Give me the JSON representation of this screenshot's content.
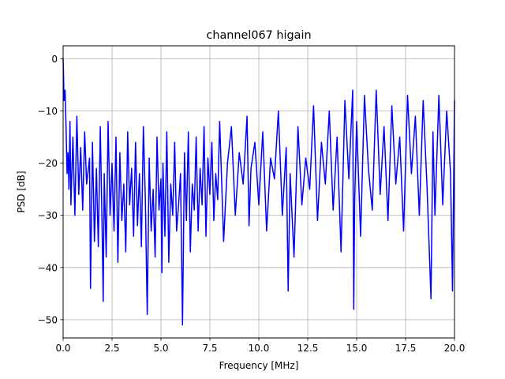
{
  "chart_data": {
    "type": "line",
    "title": "channel067 higain",
    "xlabel": "Frequency [MHz]",
    "ylabel": "PSD [dB]",
    "xlim": [
      0,
      20
    ],
    "ylim": [
      -53.5,
      2.5
    ],
    "xticks": [
      0,
      2.5,
      5,
      7.5,
      10,
      12.5,
      15,
      17.5,
      20
    ],
    "xtick_labels": [
      "0.0",
      "2.5",
      "5.0",
      "7.5",
      "10.0",
      "12.5",
      "15.0",
      "17.5",
      "20.0"
    ],
    "yticks": [
      0,
      -10,
      -20,
      -30,
      -40,
      -50
    ],
    "ytick_labels": [
      "0",
      "−10",
      "−20",
      "−30",
      "−40",
      "−50"
    ],
    "grid": true,
    "series": [
      {
        "color": "#0000ff",
        "x": [
          0.0,
          0.02,
          0.05,
          0.1,
          0.15,
          0.2,
          0.25,
          0.3,
          0.35,
          0.4,
          0.5,
          0.6,
          0.7,
          0.8,
          0.9,
          1.0,
          1.1,
          1.2,
          1.35,
          1.4,
          1.5,
          1.6,
          1.7,
          1.8,
          1.9,
          2.0,
          2.05,
          2.1,
          2.2,
          2.3,
          2.4,
          2.5,
          2.6,
          2.7,
          2.8,
          2.9,
          3.0,
          3.1,
          3.2,
          3.3,
          3.4,
          3.5,
          3.6,
          3.7,
          3.8,
          3.9,
          4.0,
          4.1,
          4.2,
          4.3,
          4.4,
          4.5,
          4.6,
          4.7,
          4.8,
          4.9,
          5.0,
          5.05,
          5.1,
          5.2,
          5.3,
          5.4,
          5.5,
          5.6,
          5.7,
          5.8,
          5.9,
          6.0,
          6.1,
          6.15,
          6.2,
          6.3,
          6.4,
          6.5,
          6.6,
          6.7,
          6.8,
          6.9,
          7.0,
          7.1,
          7.2,
          7.3,
          7.4,
          7.5,
          7.6,
          7.7,
          7.8,
          7.9,
          8.0,
          8.2,
          8.4,
          8.6,
          8.8,
          9.0,
          9.2,
          9.4,
          9.5,
          9.6,
          9.8,
          10.0,
          10.2,
          10.4,
          10.6,
          10.8,
          11.0,
          11.2,
          11.4,
          11.5,
          11.6,
          11.8,
          12.0,
          12.2,
          12.4,
          12.6,
          12.8,
          13.0,
          13.2,
          13.4,
          13.6,
          13.8,
          14.0,
          14.2,
          14.4,
          14.6,
          14.8,
          14.85,
          14.9,
          15.0,
          15.2,
          15.4,
          15.6,
          15.8,
          16.0,
          16.2,
          16.4,
          16.6,
          16.8,
          17.0,
          17.2,
          17.4,
          17.6,
          17.8,
          18.0,
          18.2,
          18.4,
          18.6,
          18.8,
          18.9,
          19.0,
          19.2,
          19.4,
          19.6,
          19.8,
          19.9,
          20.0
        ],
        "y": [
          0.0,
          -3,
          -8,
          -6,
          -13,
          -22,
          -18,
          -25,
          -12,
          -28,
          -15,
          -30,
          -11,
          -26,
          -17,
          -29,
          -14,
          -24,
          -19,
          -44,
          -16,
          -35,
          -21,
          -36,
          -13,
          -34,
          -46.5,
          -22,
          -38,
          -12,
          -30,
          -20,
          -33,
          -15,
          -39,
          -18,
          -31,
          -24,
          -37,
          -14,
          -28,
          -21,
          -34,
          -16,
          -32,
          -22,
          -36,
          -13,
          -27,
          -49,
          -19,
          -33,
          -25,
          -38,
          -15,
          -29,
          -23,
          -41,
          -20,
          -34,
          -14,
          -39,
          -24,
          -30,
          -16,
          -33,
          -28,
          -22,
          -51,
          -35,
          -18,
          -31,
          -14,
          -37,
          -24,
          -29,
          -15,
          -33,
          -21,
          -28,
          -13,
          -34,
          -19,
          -26,
          -16,
          -31,
          -22,
          -27,
          -12,
          -35,
          -20,
          -13,
          -30,
          -18,
          -24,
          -11,
          -32,
          -21,
          -16,
          -28,
          -14,
          -33,
          -19,
          -23,
          -10,
          -30,
          -17,
          -44.5,
          -22,
          -38,
          -13,
          -28,
          -19,
          -25,
          -9,
          -31,
          -16,
          -24,
          -10,
          -29,
          -15,
          -37,
          -8,
          -23,
          -6,
          -48,
          -27,
          -12,
          -34,
          -7,
          -21,
          -29,
          -6,
          -26,
          -13,
          -31,
          -9,
          -24,
          -15,
          -33,
          -7,
          -22,
          -11,
          -30,
          -8,
          -25,
          -46,
          -14,
          -30,
          -7,
          -28,
          -10,
          -22,
          -44.5,
          -8
        ]
      }
    ]
  }
}
